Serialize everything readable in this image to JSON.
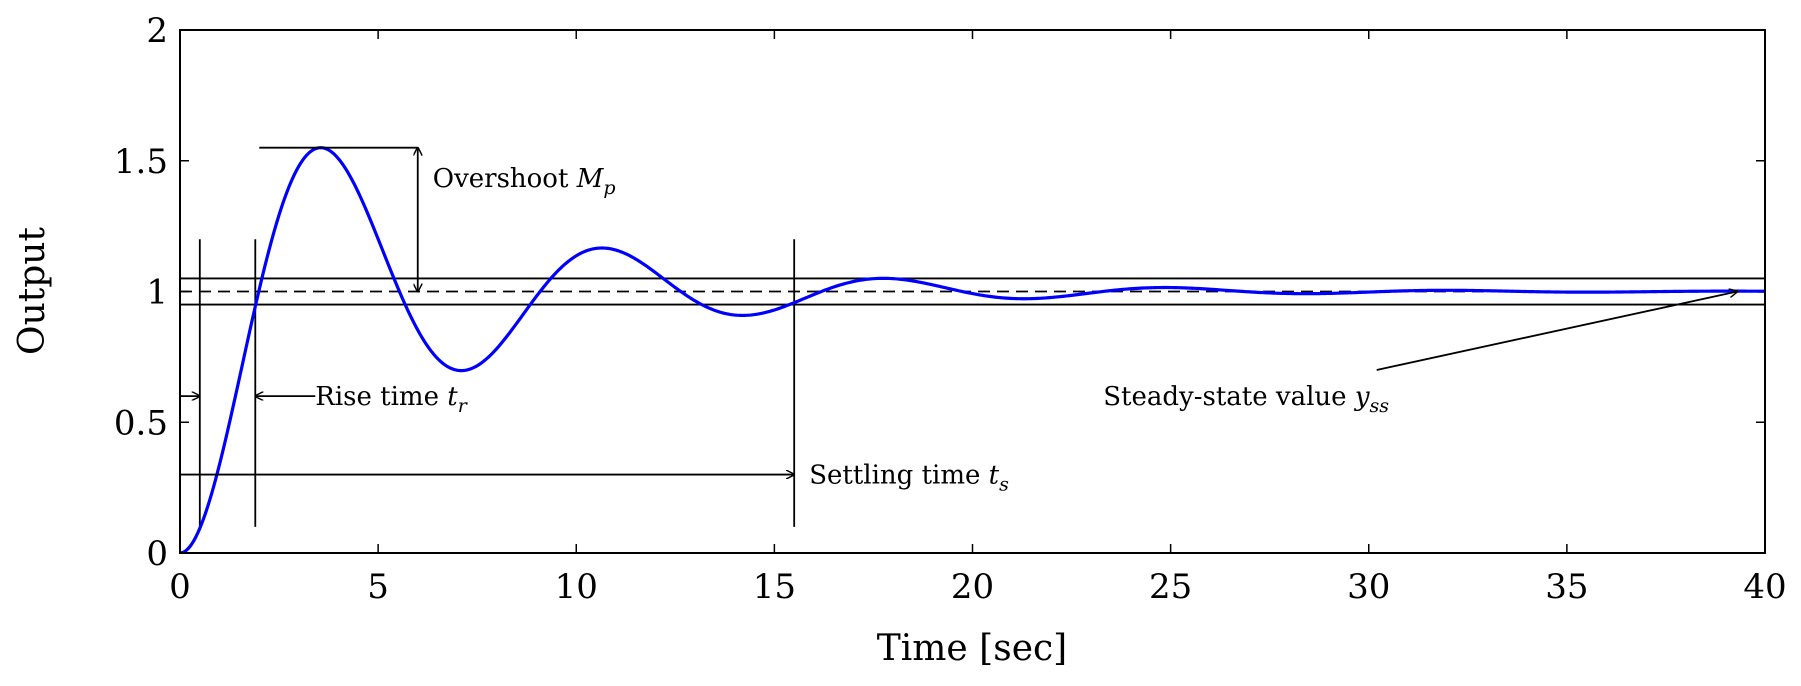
{
  "chart_data": {
    "type": "line",
    "title": "",
    "xlabel": "Time [sec]",
    "ylabel": "Output",
    "xlim": [
      0,
      40
    ],
    "ylim": [
      0,
      2
    ],
    "xticks": [
      "0",
      "5",
      "10",
      "15",
      "20",
      "25",
      "30",
      "35",
      "40"
    ],
    "yticks": [
      "0",
      "0.5",
      "1",
      "1.5",
      "2"
    ],
    "grid": false,
    "legend": "none",
    "line_color": "#0000ff",
    "response": {
      "model": "second-order underdamped step response",
      "steady_state": 1,
      "peak_time": 3.55,
      "peak_value": 1.55,
      "first_trough_time": 7.1,
      "first_trough_value": 0.71,
      "second_peak_time": 10.8,
      "second_peak_value": 1.16,
      "end_time": 40
    },
    "tolerance_band": [
      0.95,
      1.05
    ],
    "steady_state_line": 1,
    "markers": {
      "t_delay": 0.5,
      "t_rise": 1.9,
      "t_settle": 15.5,
      "overshoot_x": 6
    },
    "annotations": {
      "overshoot": {
        "text": "Overshoot ",
        "symbol": "M",
        "sub": "p"
      },
      "rise_time": {
        "text": "Rise time ",
        "symbol": "t",
        "sub": "r"
      },
      "settling_time": {
        "text": "Settling time ",
        "symbol": "t",
        "sub": "s"
      },
      "steady_state": {
        "text": "Steady-state value ",
        "symbol": "y",
        "sub": "ss"
      }
    }
  }
}
